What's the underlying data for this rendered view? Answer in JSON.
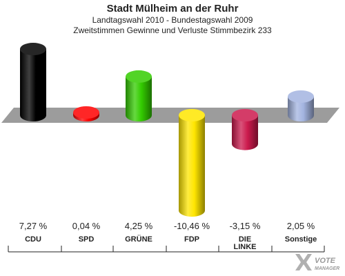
{
  "header": {
    "title": "Stadt Mülheim an der Ruhr",
    "subtitle1": "Landtagswahl 2010 - Bundestagswahl 2009",
    "subtitle2": "Zweitstimmen Gewinne und Verluste Stimmbezirk 233"
  },
  "logo": {
    "line1": "VOTE",
    "line2": "MANAGER"
  },
  "chart_data": {
    "type": "bar",
    "title": "Stadt Mülheim an der Ruhr",
    "subtitle": "Landtagswahl 2010 - Bundestagswahl 2009 / Zweitstimmen Gewinne und Verluste Stimmbezirk 233",
    "xlabel": "",
    "ylabel": "",
    "categories": [
      "CDU",
      "SPD",
      "GRÜNE",
      "FDP",
      "DIE LINKE",
      "Sonstige"
    ],
    "category_lines": [
      [
        "CDU"
      ],
      [
        "SPD"
      ],
      [
        "GRÜNE"
      ],
      [
        "FDP"
      ],
      [
        "DIE",
        "LINKE"
      ],
      [
        "Sonstige"
      ]
    ],
    "values": [
      7.27,
      0.04,
      4.25,
      -10.46,
      -3.15,
      2.05
    ],
    "value_labels": [
      "7,27 %",
      "0,04 %",
      "4,25 %",
      "-10,46 %",
      "-3,15 %",
      "2,05 %"
    ],
    "colors": [
      "#000000",
      "#ff0000",
      "#33cc00",
      "#ffe600",
      "#cc1a4d",
      "#a3b4e0"
    ],
    "ylim": [
      -11,
      8
    ],
    "grid": false,
    "legend": "none"
  }
}
